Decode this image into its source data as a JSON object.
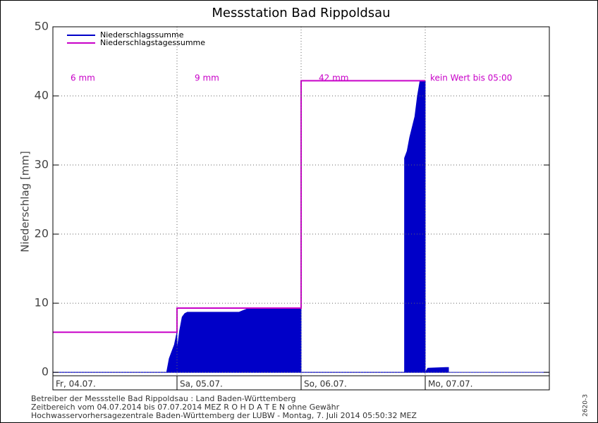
{
  "chart_data": {
    "type": "area",
    "title": "Messstation Bad Rippoldsau",
    "y_label": "Niederschlag [mm]",
    "xlim": [
      0,
      96
    ],
    "xticks": [
      {
        "value": 0,
        "label": "Fr, 04.07."
      },
      {
        "value": 24,
        "label": "Sa, 05.07."
      },
      {
        "value": 48,
        "label": "So, 06.07."
      },
      {
        "value": 72,
        "label": "Mo, 07.07."
      }
    ],
    "ylim": [
      -0.5,
      50
    ],
    "yticks": [
      0,
      10,
      20,
      30,
      40,
      50
    ],
    "grid": true,
    "legend": "upper left",
    "series": [
      {
        "name": "Niederschlagssumme",
        "color": "#0000c8",
        "style": "area",
        "x": [
          0,
          22,
          22.5,
          23,
          23.5,
          24,
          24,
          24.5,
          25,
          25.5,
          26,
          27,
          36,
          37,
          38,
          48,
          48,
          68,
          68,
          68.5,
          69,
          70,
          70.5,
          71,
          72,
          72,
          72.5,
          76,
          76.5
        ],
        "values": [
          0,
          0,
          2,
          3,
          4,
          5.8,
          3,
          6,
          8,
          8.5,
          8.7,
          8.7,
          8.7,
          9,
          9.3,
          9.3,
          0,
          0,
          31,
          32,
          34,
          37,
          40,
          42.2,
          42.2,
          0,
          0.6,
          0.7,
          0.7
        ]
      },
      {
        "name": "Niederschlagstagessumme",
        "color": "#c800c8",
        "style": "line",
        "x": [
          0,
          24,
          24,
          48,
          48,
          72
        ],
        "values": [
          5.8,
          5.8,
          9.3,
          9.3,
          42.2,
          42.2
        ]
      }
    ],
    "annotations": [
      "6 mm",
      "9 mm",
      "42 mm",
      "kein Wert bis 05:00"
    ],
    "annotation_color": "#c800c8",
    "footer": [
      "Betreiber der Messstelle Bad Rippoldsau : Land Baden-Württemberg",
      "Zeitbereich vom 04.07.2014 bis 07.07.2014    MEZ    R O H D A T E N ohne Gewähr",
      "Hochwasservorhersagezentrale Baden-Württemberg der LUBW - Montag, 7. Juli 2014 05:50:32 MEZ"
    ],
    "side_label": "2620-3"
  }
}
